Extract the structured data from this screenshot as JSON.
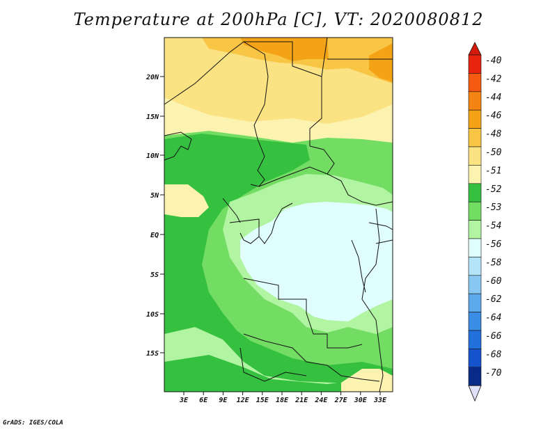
{
  "title": "Temperature at 200hPa [C], VT: 2020080812",
  "credit": "GrADS: IGES/COLA",
  "map": {
    "lon_range": [
      0,
      36
    ],
    "lat_range": [
      -20,
      24
    ],
    "lat_ticks": [
      "20N",
      "15N",
      "10N",
      "5N",
      "EQ",
      "5S",
      "10S",
      "15S"
    ],
    "lon_ticks": [
      "3E",
      "6E",
      "9E",
      "12E",
      "15E",
      "18E",
      "21E",
      "24E",
      "27E",
      "30E",
      "33E"
    ]
  },
  "colorbar": {
    "levels": [
      {
        "label": "-40",
        "color": "#e8230f"
      },
      {
        "label": "-42",
        "color": "#f55a10"
      },
      {
        "label": "-44",
        "color": "#f58512"
      },
      {
        "label": "-46",
        "color": "#f5a316"
      },
      {
        "label": "-48",
        "color": "#f9c545"
      },
      {
        "label": "-50",
        "color": "#fbe283"
      },
      {
        "label": "-51",
        "color": "#fdf3b0"
      },
      {
        "label": "-52",
        "color": "#35c040"
      },
      {
        "label": "-53",
        "color": "#72dc63"
      },
      {
        "label": "-54",
        "color": "#b1f4a1"
      },
      {
        "label": "-56",
        "color": "#e1feff"
      },
      {
        "label": "-58",
        "color": "#b3e4f8"
      },
      {
        "label": "-60",
        "color": "#87c7f2"
      },
      {
        "label": "-62",
        "color": "#5da9ec"
      },
      {
        "label": "-64",
        "color": "#3a8de4"
      },
      {
        "label": "-66",
        "color": "#2170dc"
      },
      {
        "label": "-68",
        "color": "#1553cc"
      },
      {
        "label": "-70",
        "color": "#0a2a8a"
      }
    ],
    "top_color": "#d41a0c",
    "bottom_color": "#e0e0f8"
  },
  "field_colors": {
    "c48": "#f9c545",
    "c46": "#f5a316",
    "c50": "#fbe283",
    "c51": "#fdf3b0",
    "c52": "#35c040",
    "c53": "#72dc63",
    "c54": "#b1f4a1",
    "c56": "#e1feff"
  }
}
